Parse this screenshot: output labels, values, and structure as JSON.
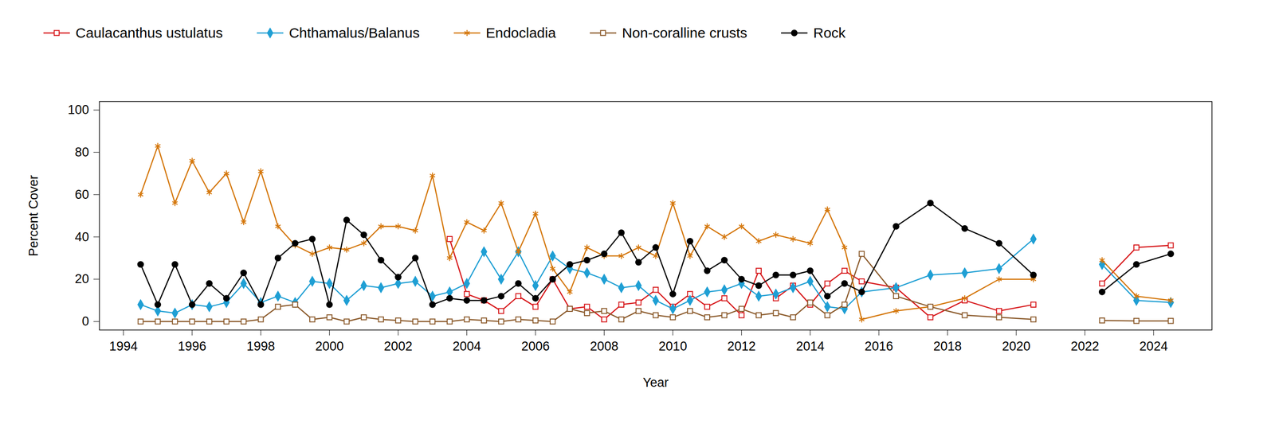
{
  "chart_data": {
    "type": "line",
    "x_label": "Year",
    "y_label": "Percent Cover",
    "x": [
      1994.5,
      1995,
      1995.5,
      1996,
      1996.5,
      1997,
      1997.5,
      1998,
      1998.5,
      1999,
      1999.5,
      2000,
      2000.5,
      2001,
      2001.5,
      2002,
      2002.5,
      2003,
      2003.5,
      2004,
      2004.5,
      2005,
      2005.5,
      2006,
      2006.5,
      2007,
      2007.5,
      2008,
      2008.5,
      2009,
      2009.5,
      2010,
      2010.5,
      2011,
      2011.5,
      2012,
      2012.5,
      2013,
      2013.5,
      2014,
      2014.5,
      2015,
      2015.5,
      2016.5,
      2017.5,
      2018.5,
      2019.5,
      2020.5,
      2021.5,
      2022.5,
      2023.5,
      2024.5
    ],
    "series": [
      {
        "name": "Caulacanthus ustulatus",
        "color": "#d7191c",
        "marker": "square_open",
        "values": [
          null,
          null,
          null,
          null,
          null,
          null,
          null,
          null,
          null,
          null,
          null,
          null,
          null,
          null,
          null,
          null,
          null,
          null,
          39,
          13,
          10,
          5,
          12,
          7,
          20,
          6,
          7,
          1,
          8,
          9,
          15,
          7,
          13,
          7,
          11,
          3,
          24,
          11,
          17,
          8,
          18,
          24,
          19,
          16,
          2,
          10,
          5,
          8,
          null,
          18,
          35,
          36
        ]
      },
      {
        "name": "Chthamalus/Balanus",
        "color": "#1f9fd4",
        "marker": "diamond",
        "values": [
          8,
          5,
          4,
          8,
          7,
          9,
          18,
          9,
          12,
          9,
          19,
          18,
          10,
          17,
          16,
          18,
          19,
          12,
          14,
          18,
          33,
          20,
          33,
          17,
          31,
          25,
          23,
          20,
          16,
          17,
          10,
          6,
          10,
          14,
          15,
          18,
          12,
          13,
          16,
          19,
          7,
          6,
          14,
          16,
          22,
          23,
          25,
          39,
          null,
          27,
          10,
          9
        ]
      },
      {
        "name": "Endocladia",
        "color": "#d4760a",
        "marker": "asterisk",
        "values": [
          60,
          83,
          56,
          76,
          61,
          70,
          47,
          71,
          45,
          36,
          32,
          35,
          34,
          37,
          45,
          45,
          43,
          69,
          30,
          47,
          43,
          56,
          33,
          51,
          25,
          14,
          35,
          31,
          31,
          35,
          31,
          56,
          31,
          45,
          40,
          45,
          38,
          41,
          39,
          37,
          53,
          35,
          1,
          5,
          7,
          11,
          20,
          20,
          null,
          29,
          12,
          10
        ]
      },
      {
        "name": "Non-coralline crusts",
        "color": "#8b5a2b",
        "marker": "square_open",
        "values": [
          0,
          0,
          0,
          0,
          0,
          0,
          0,
          1,
          7,
          8,
          1,
          2,
          0,
          2,
          1,
          0.5,
          0,
          0,
          0,
          1,
          0.5,
          0,
          1,
          0.5,
          0,
          6,
          4,
          5,
          1,
          5,
          3,
          2,
          5,
          2,
          3,
          6,
          3,
          4,
          2,
          9,
          3,
          8,
          32,
          12,
          7,
          3,
          2,
          1,
          null,
          0.5,
          0.3,
          0.3
        ]
      },
      {
        "name": "Rock",
        "color": "#000000",
        "marker": "circle",
        "values": [
          27,
          8,
          27,
          8,
          18,
          11,
          23,
          8,
          30,
          37,
          39,
          8,
          48,
          41,
          29,
          21,
          30,
          8,
          11,
          10,
          10,
          12,
          18,
          11,
          20,
          27,
          29,
          32,
          42,
          28,
          35,
          13,
          38,
          24,
          29,
          20,
          17,
          22,
          22,
          24,
          12,
          18,
          14,
          45,
          56,
          44,
          37,
          22,
          null,
          14,
          27,
          32
        ]
      }
    ],
    "xlim": [
      1993.3,
      2025.7
    ],
    "xticks": [
      1994,
      1996,
      1998,
      2000,
      2002,
      2004,
      2006,
      2008,
      2010,
      2012,
      2014,
      2016,
      2018,
      2020,
      2022,
      2024
    ],
    "ylim": [
      -4,
      104
    ],
    "yticks": [
      0,
      20,
      40,
      60,
      80,
      100
    ],
    "grid": false,
    "legend": "top"
  }
}
